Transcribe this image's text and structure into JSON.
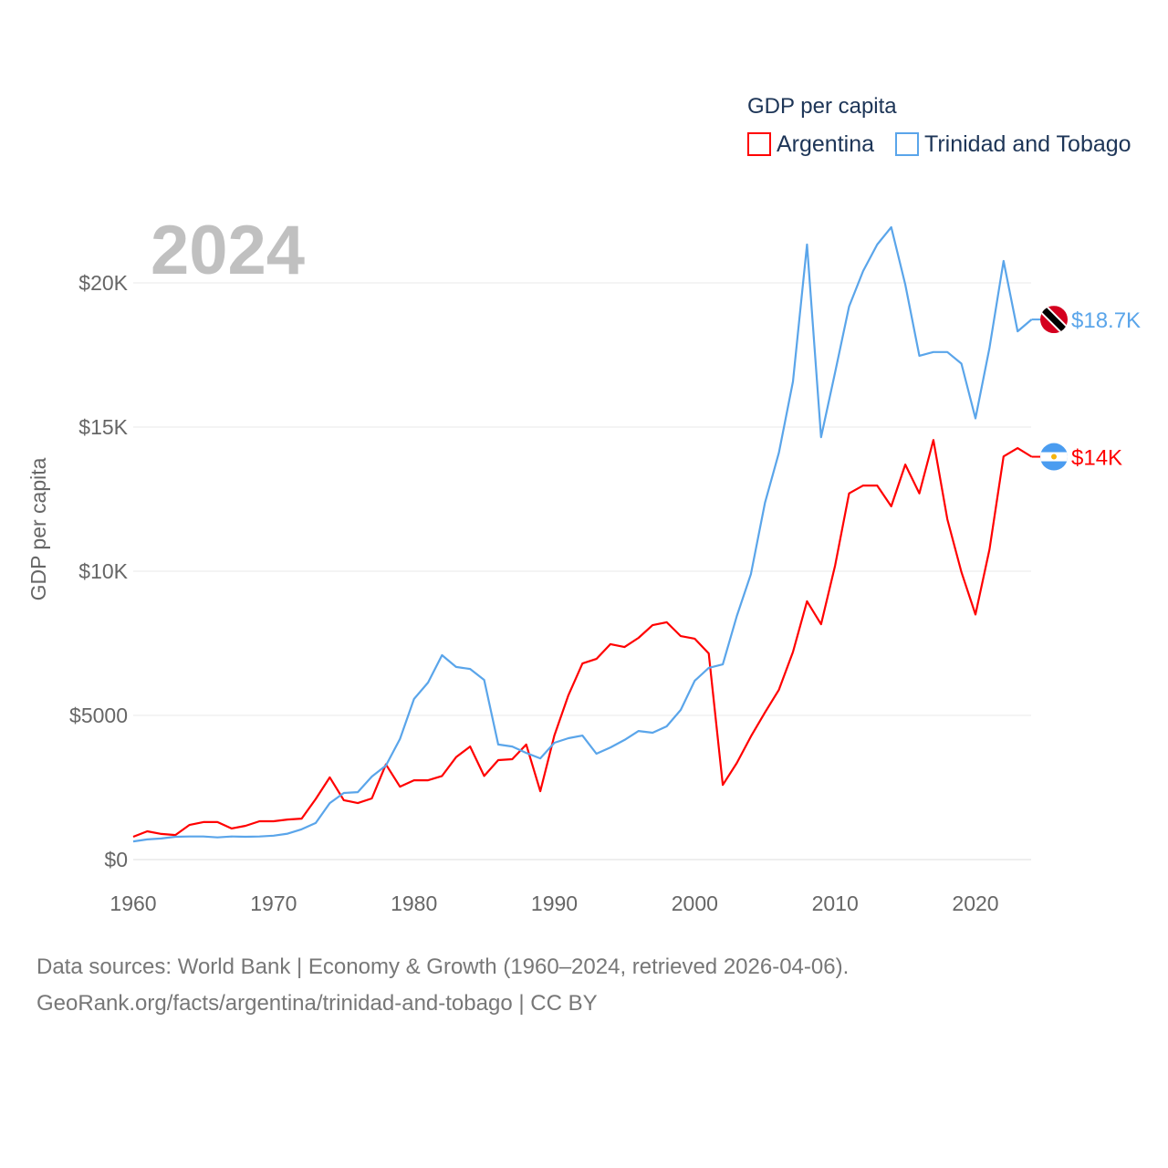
{
  "chart_data": {
    "type": "line",
    "title": "GDP per capita",
    "ylabel": "GDP per capita",
    "xlabel": "",
    "current_year": "2024",
    "xlim": [
      1960,
      2024
    ],
    "ylim": [
      0,
      22500
    ],
    "x_ticks": [
      1960,
      1970,
      1980,
      1990,
      2000,
      2010,
      2020
    ],
    "y_ticks": [
      0,
      5000,
      10000,
      15000,
      20000
    ],
    "y_tick_labels": [
      "$0",
      "$5000",
      "$10K",
      "$15K",
      "$20K"
    ],
    "grid": true,
    "legend_placement": "top-right",
    "x": [
      1960,
      1961,
      1962,
      1963,
      1964,
      1965,
      1966,
      1967,
      1968,
      1969,
      1970,
      1971,
      1972,
      1973,
      1974,
      1975,
      1976,
      1977,
      1978,
      1979,
      1980,
      1981,
      1982,
      1983,
      1984,
      1985,
      1986,
      1987,
      1988,
      1989,
      1990,
      1991,
      1992,
      1993,
      1994,
      1995,
      1996,
      1997,
      1998,
      1999,
      2000,
      2001,
      2002,
      2003,
      2004,
      2005,
      2006,
      2007,
      2008,
      2009,
      2010,
      2011,
      2012,
      2013,
      2014,
      2015,
      2016,
      2017,
      2018,
      2019,
      2020,
      2021,
      2022,
      2023,
      2024
    ],
    "series": [
      {
        "name": "Argentina",
        "color": "#ff0000",
        "end_label": "$14K",
        "flag": "argentina-flag",
        "values": [
          790,
          980,
          890,
          850,
          1200,
          1300,
          1300,
          1080,
          1170,
          1330,
          1330,
          1390,
          1420,
          2100,
          2850,
          2060,
          1960,
          2120,
          3300,
          2530,
          2750,
          2750,
          2900,
          3550,
          3920,
          2900,
          3450,
          3480,
          3990,
          2370,
          4300,
          5700,
          6800,
          6960,
          7470,
          7370,
          7690,
          8130,
          8230,
          7750,
          7660,
          7150,
          2590,
          3350,
          4270,
          5100,
          5890,
          7200,
          8960,
          8160,
          10200,
          12700,
          12970,
          12970,
          12250,
          13700,
          12700,
          14550,
          11800,
          9970,
          8500,
          10760,
          13980,
          14270,
          13970
        ]
      },
      {
        "name": "Trinidad and Tobago",
        "color": "#5aa5ea",
        "end_label": "$18.7K",
        "flag": "trinidad-flag",
        "values": [
          630,
          700,
          730,
          790,
          800,
          800,
          770,
          800,
          790,
          800,
          830,
          900,
          1050,
          1270,
          1960,
          2310,
          2340,
          2880,
          3260,
          4180,
          5570,
          6140,
          7090,
          6680,
          6610,
          6230,
          3990,
          3920,
          3700,
          3510,
          4050,
          4210,
          4300,
          3670,
          3890,
          4150,
          4460,
          4400,
          4620,
          5190,
          6200,
          6650,
          6770,
          8450,
          9900,
          12370,
          14110,
          16580,
          21330,
          14650,
          16900,
          19180,
          20410,
          21330,
          21930,
          19940,
          17470,
          17600,
          17600,
          17200,
          15300,
          17750,
          20760,
          18320,
          18730
        ]
      }
    ]
  },
  "footer": {
    "line1": "Data sources: World Bank | Economy & Growth (1960–2024, retrieved 2026-04-06).",
    "line2": "GeoRank.org/facts/argentina/trinidad-and-tobago | CC BY"
  }
}
